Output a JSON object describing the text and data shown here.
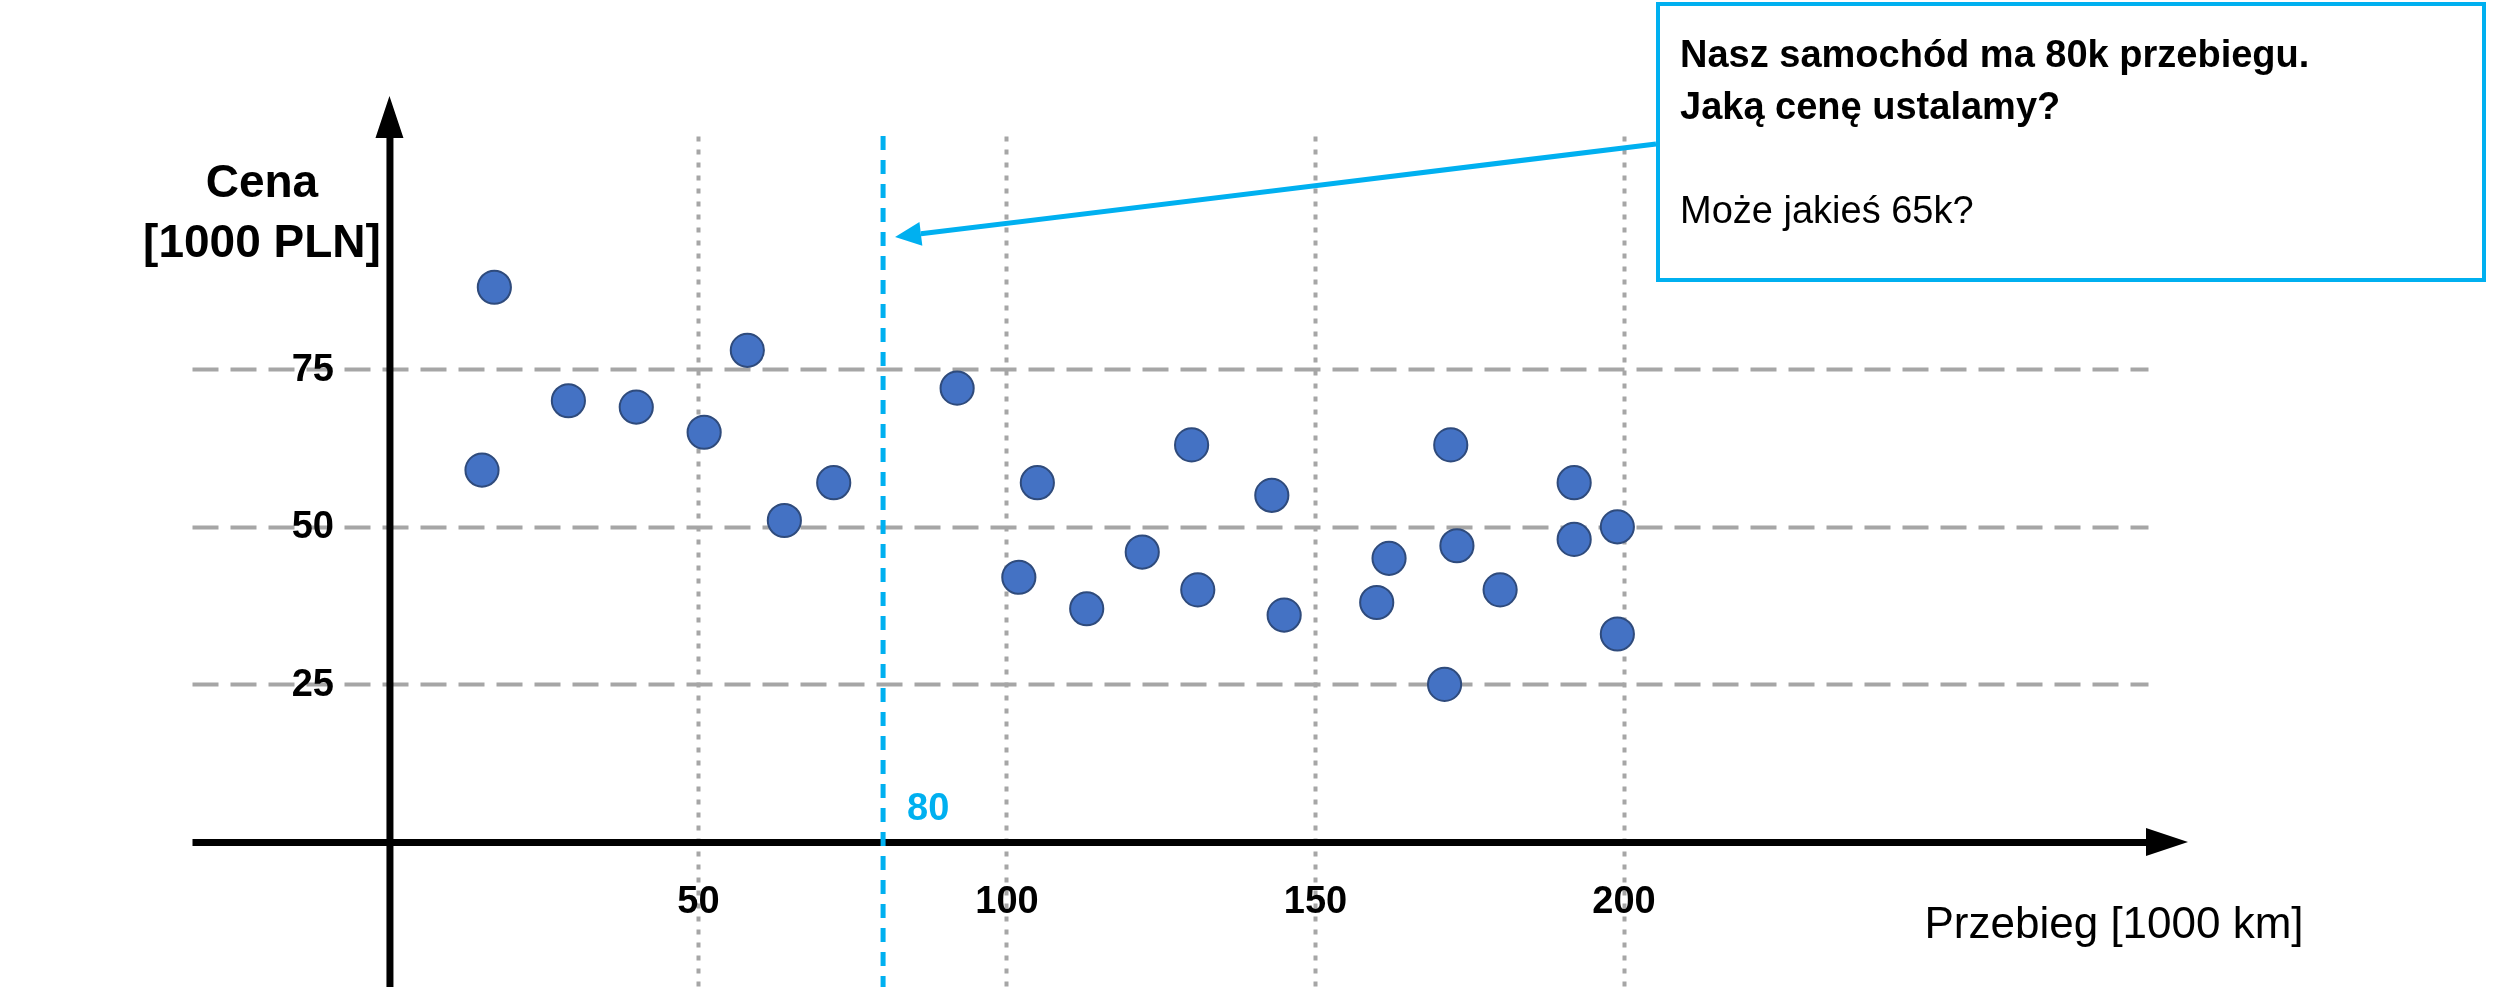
{
  "chart_data": {
    "type": "scatter",
    "xlabel": "Przebieg [1000 km]",
    "ylabel": "Cena [1000 PLN]",
    "x": [
      15,
      17,
      29,
      40,
      51,
      58,
      64,
      72,
      92,
      105,
      102,
      113,
      122,
      130,
      131,
      143,
      145,
      160,
      162,
      172,
      173,
      171,
      180,
      192,
      192,
      199,
      199
    ],
    "series": [
      {
        "color": "#4472c4",
        "values": [
          59,
          88,
          70,
          69,
          65,
          78,
          51,
          57,
          72,
          57,
          42,
          37,
          46,
          63,
          40,
          55,
          36,
          38,
          45,
          63,
          47,
          25,
          40,
          57,
          48,
          50,
          33
        ]
      }
    ],
    "xlim": [
      -32,
      285
    ],
    "ylim": [
      -23,
      112
    ],
    "xticks": [
      50,
      100,
      150,
      200
    ],
    "yticks": [
      25,
      50,
      75
    ],
    "grid": true,
    "marker": "circle",
    "ref_lines": [
      {
        "axis": "x",
        "value": 80,
        "label": "80",
        "color": "#00b0f0",
        "line_style": "dashed"
      }
    ],
    "annotations": [
      "Nasz samochód ma 80k przebiegu.",
      "Jaką cenę ustalamy?",
      "Może jakieś 65k?"
    ]
  }
}
